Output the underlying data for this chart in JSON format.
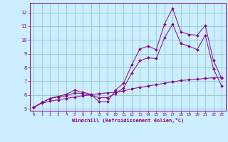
{
  "xlabel": "Windchill (Refroidissement éolien,°C)",
  "bg_color": "#cceeff",
  "grid_color": "#99cccc",
  "line_color": "#880088",
  "xlim": [
    -0.5,
    23.5
  ],
  "ylim": [
    4.85,
    12.7
  ],
  "yticks": [
    5,
    6,
    7,
    8,
    9,
    10,
    11,
    12
  ],
  "xticks": [
    0,
    1,
    2,
    3,
    4,
    5,
    6,
    7,
    8,
    9,
    10,
    11,
    12,
    13,
    14,
    15,
    16,
    17,
    18,
    19,
    20,
    21,
    22,
    23
  ],
  "line1_x": [
    0,
    1,
    2,
    3,
    4,
    5,
    6,
    7,
    8,
    9,
    10,
    11,
    12,
    13,
    14,
    15,
    16,
    17,
    18,
    19,
    20,
    21,
    22,
    23
  ],
  "line1_y": [
    5.1,
    5.45,
    5.75,
    5.9,
    6.05,
    6.35,
    6.2,
    6.05,
    5.5,
    5.5,
    6.35,
    6.85,
    8.2,
    9.35,
    9.55,
    9.3,
    11.15,
    12.3,
    10.6,
    10.4,
    10.35,
    11.05,
    8.5,
    7.2
  ],
  "line2_x": [
    0,
    1,
    2,
    3,
    4,
    5,
    6,
    7,
    8,
    9,
    10,
    11,
    12,
    13,
    14,
    15,
    16,
    17,
    18,
    19,
    20,
    21,
    22,
    23
  ],
  "line2_y": [
    5.1,
    5.45,
    5.75,
    5.85,
    5.95,
    6.15,
    6.1,
    6.0,
    5.8,
    5.8,
    6.1,
    6.5,
    7.6,
    8.5,
    8.7,
    8.65,
    10.15,
    11.15,
    9.75,
    9.55,
    9.3,
    10.35,
    7.9,
    6.65
  ],
  "line3_x": [
    0,
    1,
    2,
    3,
    4,
    5,
    6,
    7,
    8,
    9,
    10,
    11,
    12,
    13,
    14,
    15,
    16,
    17,
    18,
    19,
    20,
    21,
    22,
    23
  ],
  "line3_y": [
    5.1,
    5.4,
    5.55,
    5.65,
    5.75,
    5.85,
    5.95,
    6.0,
    6.1,
    6.15,
    6.2,
    6.3,
    6.45,
    6.55,
    6.65,
    6.75,
    6.85,
    6.95,
    7.05,
    7.1,
    7.15,
    7.2,
    7.25,
    7.3
  ]
}
